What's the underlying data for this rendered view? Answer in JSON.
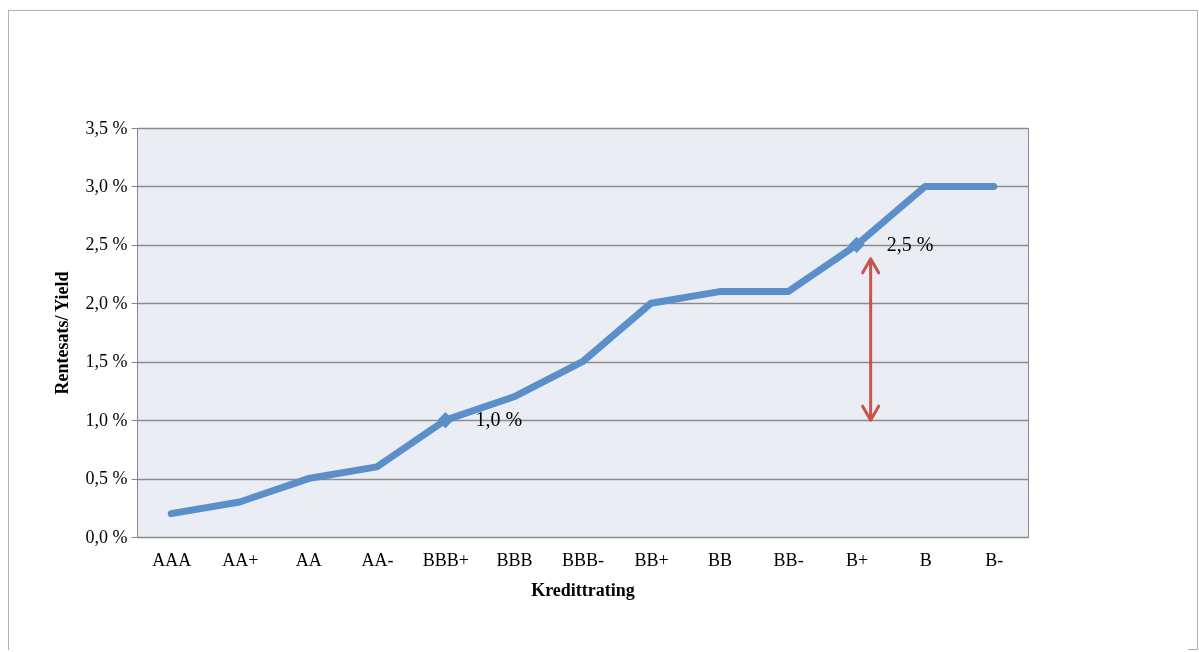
{
  "chart_data": {
    "type": "line",
    "xlabel": "Kredittrating",
    "ylabel": "Rentesats/ Yield",
    "categories": [
      "AAA",
      "AA+",
      "AA",
      "AA-",
      "BBB+",
      "BBB",
      "BBB-",
      "BB+",
      "BB",
      "BB-",
      "B+",
      "B",
      "B-"
    ],
    "series": [
      {
        "color": "#5b8fc9",
        "values": [
          0.2,
          0.3,
          0.5,
          0.6,
          1.0,
          1.2,
          1.5,
          2.0,
          2.1,
          2.1,
          2.5,
          3.0,
          3.0
        ]
      }
    ],
    "ylim": [
      0,
      3.5
    ],
    "yticks": [
      {
        "value": 0,
        "label": "0,0 %"
      },
      {
        "value": 0.5,
        "label": "0,5 %"
      },
      {
        "value": 1,
        "label": "1,0 %"
      },
      {
        "value": 1.5,
        "label": "1,5 %"
      },
      {
        "value": 2,
        "label": "2,0 %"
      },
      {
        "value": 2.5,
        "label": "2,5 %"
      },
      {
        "value": 3,
        "label": "3,0 %"
      },
      {
        "value": 3.5,
        "label": "3,5 %"
      }
    ],
    "grid": "y",
    "annotations": [
      {
        "text": "1,0 %",
        "x": "BBB+",
        "y": 1.0
      },
      {
        "text": "2,5 %",
        "x": "B+",
        "y": 2.5
      }
    ]
  }
}
